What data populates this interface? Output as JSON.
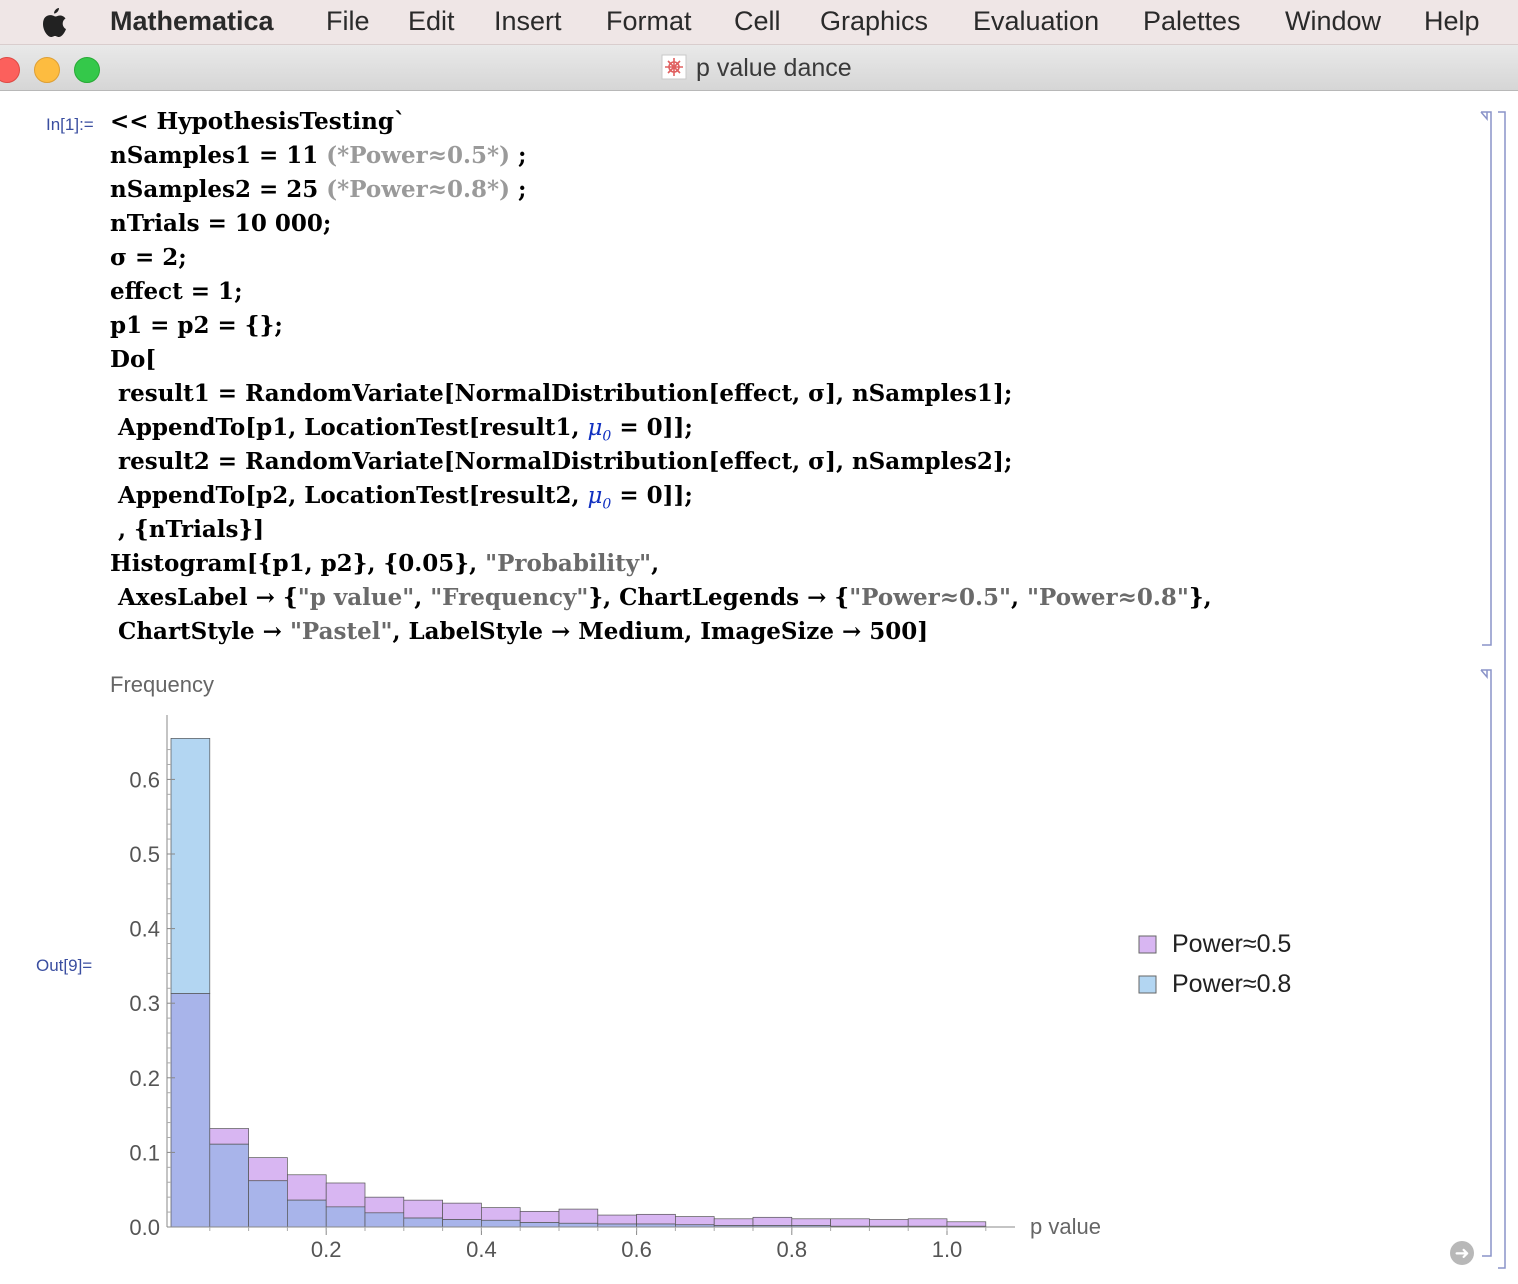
{
  "menubar": {
    "app_name": "Mathematica",
    "items": [
      "File",
      "Edit",
      "Insert",
      "Format",
      "Cell",
      "Graphics",
      "Evaluation",
      "Palettes",
      "Window",
      "Help"
    ]
  },
  "window": {
    "title": "p value dance"
  },
  "cells": {
    "input_label": "In[1]:=",
    "output_label": "Out[9]=",
    "code": {
      "l1": "<< HypothesisTesting`",
      "l2a": "nSamples1 = 11 ",
      "l2c": "(*Power≈0.5*)",
      "l2b": " ;",
      "l3a": "nSamples2 = 25 ",
      "l3c": "(*Power≈0.8*)",
      "l3b": " ;",
      "l4": "nTrials = 10 000;",
      "l5": "σ = 2;",
      "l6": "effect = 1;",
      "l7": "p1 = p2 = {};",
      "l8": "Do[",
      "l9": " result1 = RandomVariate[NormalDistribution[effect, σ], nSamples1];",
      "l10a": " AppendTo[p1, LocationTest[result1, ",
      "l10b": " = 0]];",
      "l11": " result2 = RandomVariate[NormalDistribution[effect, σ], nSamples2];",
      "l12a": " AppendTo[p2, LocationTest[result2, ",
      "l12b": " = 0]];",
      "l13": " , {nTrials}]",
      "l14a": "Histogram[{p1, p2}, {0.05}, ",
      "l14s": "\"Probability\"",
      "l14b": ",",
      "l15a": " AxesLabel → {",
      "l15s1": "\"p value\"",
      "l15b": ", ",
      "l15s2": "\"Frequency\"",
      "l15c": "}, ChartLegends → {",
      "l15s3": "\"Power≈0.5\"",
      "l15d": ", ",
      "l15s4": "\"Power≈0.8\"",
      "l15e": "},",
      "l16a": " ChartStyle → ",
      "l16s": "\"Pastel\"",
      "l16b": ", LabelStyle → Medium, ImageSize → 500]",
      "mu_symbol": "μ",
      "mu_sub": "0"
    }
  },
  "colors": {
    "power05": "#d8b6f2",
    "power08": "#b3d6f2",
    "overlap": "#a8b4ea"
  },
  "chart_data": {
    "type": "bar",
    "subtype": "overlapping-histogram",
    "ylabel": "Frequency",
    "xlabel": "p value",
    "bin_width": 0.05,
    "xlim": [
      0,
      1.05
    ],
    "ylim": [
      0,
      0.66
    ],
    "x_ticks": [
      0.2,
      0.4,
      0.6,
      0.8,
      1.0
    ],
    "x_tick_labels": [
      "0.2",
      "0.4",
      "0.6",
      "0.8",
      "1.0"
    ],
    "y_ticks": [
      0.0,
      0.1,
      0.2,
      0.3,
      0.4,
      0.5,
      0.6
    ],
    "y_tick_labels": [
      "0.0",
      "0.1",
      "0.2",
      "0.3",
      "0.4",
      "0.5",
      "0.6"
    ],
    "bins": [
      "0.00-0.05",
      "0.05-0.10",
      "0.10-0.15",
      "0.15-0.20",
      "0.20-0.25",
      "0.25-0.30",
      "0.30-0.35",
      "0.35-0.40",
      "0.40-0.45",
      "0.45-0.50",
      "0.50-0.55",
      "0.55-0.60",
      "0.60-0.65",
      "0.65-0.70",
      "0.70-0.75",
      "0.75-0.80",
      "0.80-0.85",
      "0.85-0.90",
      "0.90-0.95",
      "0.95-1.00",
      "1.00-1.05"
    ],
    "series": [
      {
        "name": "Power≈0.5",
        "values": [
          0.313,
          0.132,
          0.093,
          0.07,
          0.059,
          0.04,
          0.036,
          0.032,
          0.026,
          0.021,
          0.024,
          0.016,
          0.017,
          0.014,
          0.011,
          0.013,
          0.011,
          0.011,
          0.01,
          0.011,
          0.007
        ]
      },
      {
        "name": "Power≈0.8",
        "values": [
          0.655,
          0.111,
          0.062,
          0.036,
          0.027,
          0.019,
          0.012,
          0.01,
          0.009,
          0.006,
          0.005,
          0.004,
          0.004,
          0.003,
          0.002,
          0.002,
          0.002,
          0.001,
          0.001,
          0.001,
          0.001
        ]
      }
    ],
    "legend": [
      "Power≈0.5",
      "Power≈0.8"
    ],
    "legend_position": "right"
  }
}
